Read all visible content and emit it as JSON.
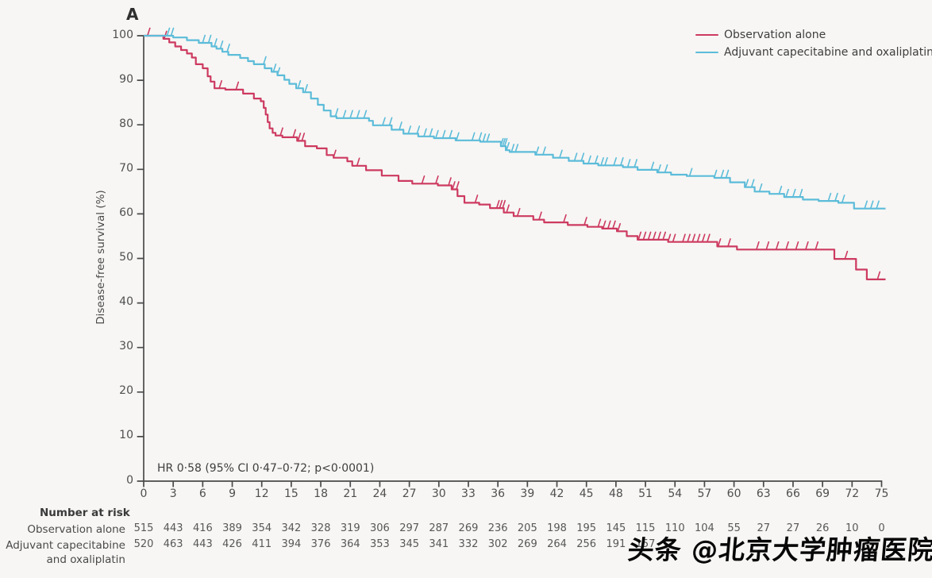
{
  "panel_label": "A",
  "colors": {
    "observation": "#cd3a60",
    "capox": "#5cbcd9",
    "axis": "#4a4a4a",
    "text": "#3e3e3e",
    "background": "#f7f6f4",
    "watermark": "#070707"
  },
  "legend": [
    {
      "label": "Observation alone",
      "color": "#cd3a60"
    },
    {
      "label": "Adjuvant capecitabine and oxaliplatin",
      "color": "#5cbcd9"
    }
  ],
  "hr_annotation": "HR 0·58 (95% CI 0·47–0·72; p<0·0001)",
  "watermark": "头条 @北京大学肿瘤医院",
  "at_risk": {
    "title": "Number at risk",
    "rows": [
      {
        "label": "Observation alone",
        "label2": "",
        "values": [
          "515",
          "443",
          "416",
          "389",
          "354",
          "342",
          "328",
          "319",
          "306",
          "297",
          "287",
          "269",
          "236",
          "205",
          "198",
          "195",
          "145",
          "115",
          "110",
          "104",
          "55",
          "27",
          "27",
          "26",
          "10",
          "0"
        ]
      },
      {
        "label": "Adjuvant capecitabine",
        "label2": "and oxaliplatin",
        "values": [
          "520",
          "463",
          "443",
          "426",
          "411",
          "394",
          "376",
          "364",
          "353",
          "345",
          "341",
          "332",
          "302",
          "269",
          "264",
          "256",
          "191",
          "157",
          "",
          "",
          "",
          "",
          "",
          "",
          "",
          ""
        ]
      }
    ]
  },
  "chart_data": {
    "type": "line",
    "subtype": "kaplan_meier_step",
    "title": "",
    "xlabel": "",
    "ylabel": "Disease-free survival (%)",
    "xlim": [
      0,
      75
    ],
    "ylim": [
      0,
      100
    ],
    "grid": false,
    "legend_position": "top-right",
    "x_ticks": [
      0,
      3,
      6,
      9,
      12,
      15,
      18,
      21,
      24,
      27,
      30,
      33,
      36,
      39,
      42,
      45,
      48,
      51,
      54,
      57,
      60,
      63,
      66,
      69,
      72,
      75
    ],
    "y_ticks": [
      0,
      10,
      20,
      30,
      40,
      50,
      60,
      70,
      80,
      90,
      100
    ],
    "series": [
      {
        "name": "Observation alone",
        "color": "#cd3a60",
        "steps": [
          [
            0,
            100
          ],
          [
            2.0,
            99.3
          ],
          [
            2.6,
            98.5
          ],
          [
            3.2,
            97.6
          ],
          [
            3.8,
            96.8
          ],
          [
            4.4,
            96.0
          ],
          [
            4.9,
            95.1
          ],
          [
            5.3,
            93.6
          ],
          [
            6.0,
            92.7
          ],
          [
            6.5,
            90.9
          ],
          [
            6.8,
            89.7
          ],
          [
            7.2,
            88.2
          ],
          [
            8.3,
            87.9
          ],
          [
            10.1,
            87.0
          ],
          [
            11.2,
            85.9
          ],
          [
            11.9,
            85.3
          ],
          [
            12.2,
            83.8
          ],
          [
            12.4,
            82.3
          ],
          [
            12.6,
            80.6
          ],
          [
            12.8,
            79.2
          ],
          [
            13.1,
            78.2
          ],
          [
            13.4,
            77.6
          ],
          [
            14.1,
            77.2
          ],
          [
            15.6,
            76.4
          ],
          [
            16.4,
            75.2
          ],
          [
            17.6,
            74.7
          ],
          [
            18.6,
            73.2
          ],
          [
            19.3,
            72.6
          ],
          [
            20.7,
            71.8
          ],
          [
            21.2,
            70.8
          ],
          [
            22.6,
            69.8
          ],
          [
            24.2,
            68.6
          ],
          [
            25.9,
            67.4
          ],
          [
            27.3,
            66.8
          ],
          [
            29.9,
            66.4
          ],
          [
            31.3,
            65.5
          ],
          [
            31.9,
            64.0
          ],
          [
            32.6,
            62.5
          ],
          [
            34.1,
            62.1
          ],
          [
            35.2,
            61.3
          ],
          [
            36.6,
            60.3
          ],
          [
            37.6,
            59.5
          ],
          [
            39.6,
            58.7
          ],
          [
            40.7,
            58.1
          ],
          [
            43.1,
            57.5
          ],
          [
            45.1,
            57.1
          ],
          [
            46.6,
            56.7
          ],
          [
            48.1,
            56.1
          ],
          [
            49.1,
            55.0
          ],
          [
            50.2,
            54.2
          ],
          [
            53.3,
            53.7
          ],
          [
            58.3,
            52.7
          ],
          [
            60.3,
            52.0
          ],
          [
            70.2,
            49.9
          ],
          [
            72.4,
            47.5
          ],
          [
            73.5,
            45.3
          ],
          [
            75,
            45.3
          ]
        ],
        "censor_months": [
          0.4,
          2.1,
          7.7,
          9.4,
          13.9,
          15.2,
          15.7,
          16.1,
          19.3,
          21.7,
          28.3,
          29.7,
          31.0,
          31.4,
          31.8,
          33.7,
          35.9,
          36.2,
          36.5,
          36.9,
          38.0,
          40.2,
          42.7,
          44.8,
          46.2,
          46.7,
          47.2,
          47.7,
          48.2,
          50.3,
          50.8,
          51.3,
          51.8,
          52.3,
          52.8,
          53.3,
          53.8,
          54.8,
          55.3,
          55.8,
          56.3,
          56.8,
          57.3,
          58.4,
          59.4,
          62.3,
          63.3,
          64.3,
          65.3,
          66.3,
          67.3,
          68.3,
          71.3,
          74.6
        ]
      },
      {
        "name": "Adjuvant capecitabine and oxaliplatin",
        "color": "#5cbcd9",
        "steps": [
          [
            0,
            100
          ],
          [
            3.0,
            99.6
          ],
          [
            4.4,
            99.0
          ],
          [
            5.6,
            98.4
          ],
          [
            6.9,
            97.6
          ],
          [
            7.4,
            97.1
          ],
          [
            8.0,
            96.4
          ],
          [
            8.6,
            95.7
          ],
          [
            9.8,
            95.0
          ],
          [
            10.6,
            94.3
          ],
          [
            11.2,
            93.6
          ],
          [
            12.3,
            92.7
          ],
          [
            13.0,
            91.9
          ],
          [
            13.6,
            91.1
          ],
          [
            14.3,
            90.1
          ],
          [
            14.8,
            89.2
          ],
          [
            15.5,
            88.2
          ],
          [
            16.2,
            87.3
          ],
          [
            17.0,
            85.9
          ],
          [
            17.7,
            84.5
          ],
          [
            18.3,
            83.2
          ],
          [
            19.0,
            81.9
          ],
          [
            19.6,
            81.5
          ],
          [
            22.9,
            80.9
          ],
          [
            23.3,
            79.9
          ],
          [
            25.2,
            78.9
          ],
          [
            26.4,
            78.0
          ],
          [
            27.9,
            77.4
          ],
          [
            29.5,
            77.0
          ],
          [
            31.7,
            76.5
          ],
          [
            34.2,
            76.2
          ],
          [
            36.3,
            75.2
          ],
          [
            36.8,
            74.3
          ],
          [
            37.2,
            73.9
          ],
          [
            39.8,
            73.3
          ],
          [
            41.6,
            72.6
          ],
          [
            43.2,
            71.9
          ],
          [
            44.7,
            71.3
          ],
          [
            46.2,
            70.9
          ],
          [
            48.7,
            70.5
          ],
          [
            50.2,
            69.9
          ],
          [
            52.2,
            69.3
          ],
          [
            53.6,
            68.8
          ],
          [
            55.2,
            68.5
          ],
          [
            58.0,
            68.1
          ],
          [
            59.6,
            67.1
          ],
          [
            61.1,
            66.0
          ],
          [
            62.1,
            65.0
          ],
          [
            63.6,
            64.5
          ],
          [
            65.1,
            63.8
          ],
          [
            67.0,
            63.2
          ],
          [
            68.6,
            62.9
          ],
          [
            70.6,
            62.5
          ],
          [
            72.2,
            61.2
          ],
          [
            75,
            61.2
          ]
        ],
        "censor_months": [
          2.4,
          2.8,
          6.0,
          6.6,
          7.2,
          7.8,
          8.5,
          12.2,
          13.2,
          13.6,
          15.7,
          16.4,
          19.5,
          20.3,
          21.0,
          21.7,
          22.4,
          24.3,
          25.0,
          26.0,
          26.9,
          27.8,
          28.5,
          29.1,
          29.7,
          30.4,
          31.1,
          31.8,
          33.4,
          34.1,
          34.5,
          34.9,
          36.3,
          36.5,
          36.7,
          36.9,
          37.4,
          37.8,
          39.9,
          40.6,
          42.3,
          43.8,
          44.5,
          45.2,
          45.9,
          46.5,
          46.9,
          47.8,
          48.5,
          49.2,
          49.9,
          51.6,
          52.3,
          53.0,
          55.5,
          58.0,
          58.7,
          59.2,
          61.2,
          61.8,
          62.6,
          64.6,
          65.3,
          66.0,
          66.7,
          69.6,
          70.3,
          71.0,
          73.3,
          73.9,
          74.5
        ]
      }
    ]
  }
}
